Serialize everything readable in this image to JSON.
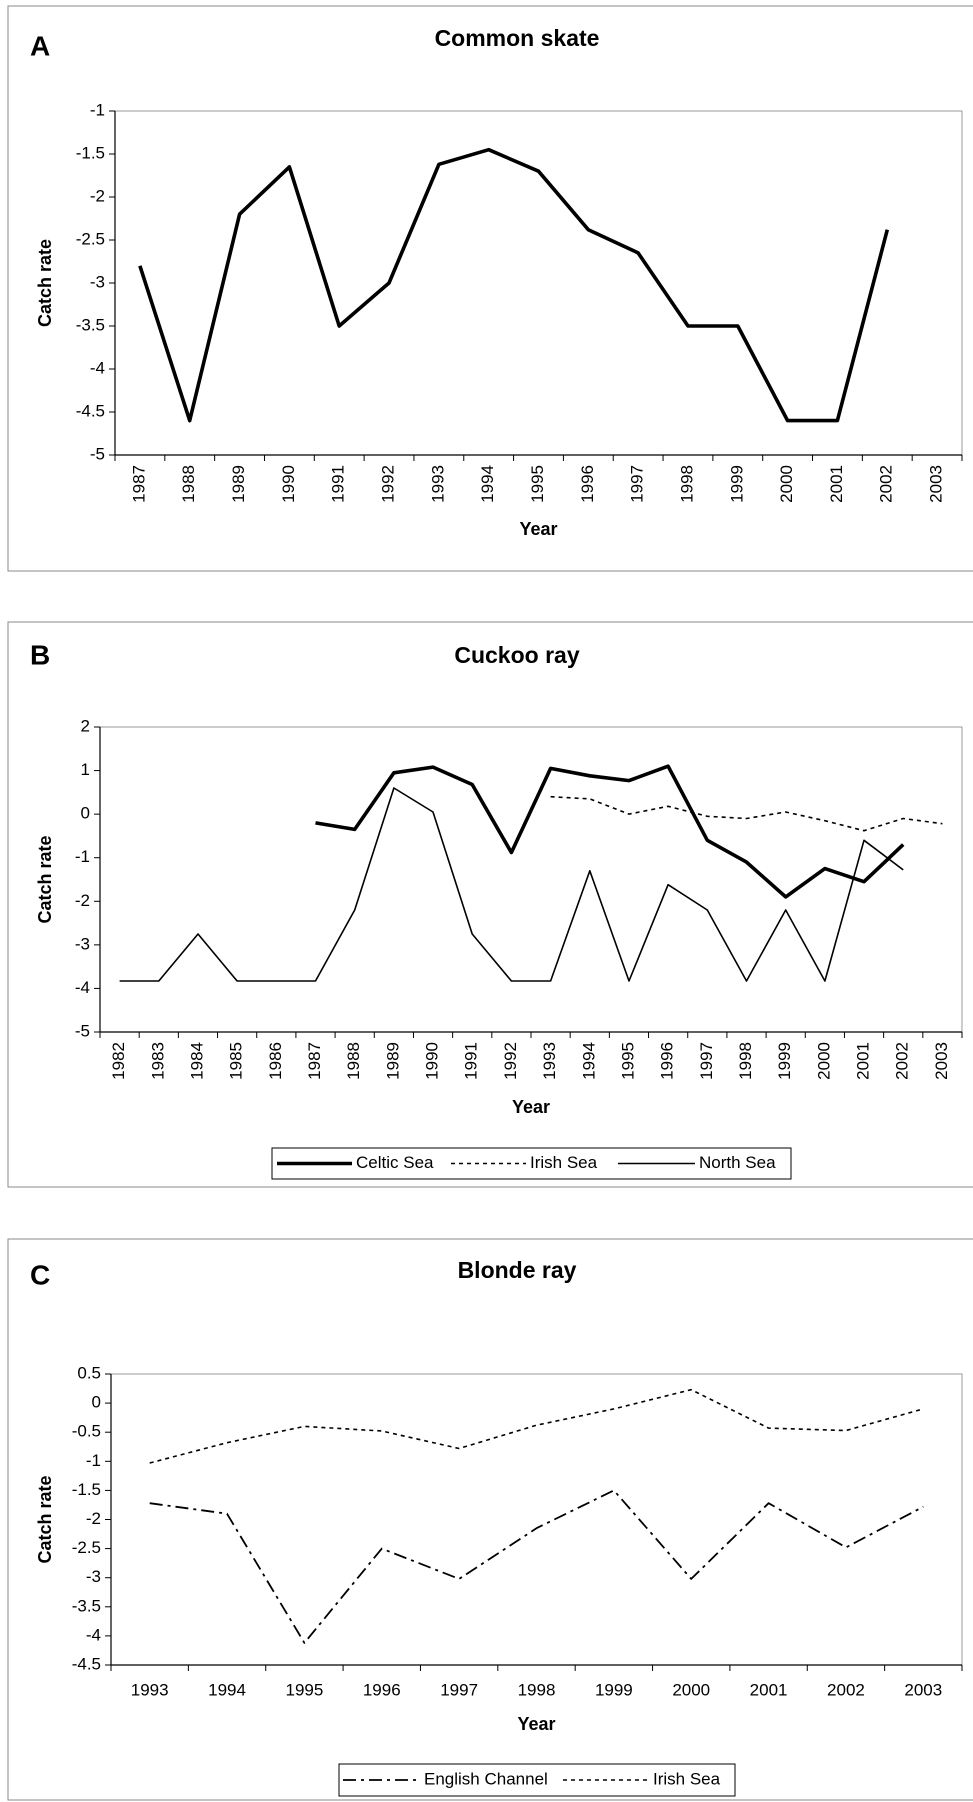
{
  "chart_data": [
    {
      "type": "line",
      "panel": "A",
      "title": "Common skate",
      "x_label": "Year",
      "y_label": "Catch rate",
      "categories": [
        "1987",
        "1988",
        "1989",
        "1990",
        "1991",
        "1992",
        "1993",
        "1994",
        "1995",
        "1996",
        "1997",
        "1998",
        "1999",
        "2000",
        "2001",
        "2002",
        "2003"
      ],
      "series": [
        {
          "color": "#000000",
          "style": "thick",
          "values": [
            -2.8,
            -4.6,
            -2.2,
            -1.65,
            -3.5,
            -3.0,
            -1.62,
            -1.45,
            -1.7,
            -2.38,
            -2.65,
            -3.5,
            -3.5,
            -4.6,
            -4.6,
            -2.38,
            null
          ]
        }
      ],
      "ylim": [
        -5,
        -1
      ],
      "yticks": [
        -5,
        -4.5,
        -4,
        -3.5,
        -3,
        -2.5,
        -2,
        -1.5,
        -1
      ],
      "grid": false
    },
    {
      "type": "line",
      "panel": "B",
      "title": "Cuckoo ray",
      "x_label": "Year",
      "y_label": "Catch rate",
      "categories": [
        "1982",
        "1983",
        "1984",
        "1985",
        "1986",
        "1987",
        "1988",
        "1989",
        "1990",
        "1991",
        "1992",
        "1993",
        "1994",
        "1995",
        "1996",
        "1997",
        "1998",
        "1999",
        "2000",
        "2001",
        "2002",
        "2003"
      ],
      "series": [
        {
          "name": "Celtic Sea",
          "color": "#000000",
          "style": "thick",
          "values": [
            null,
            null,
            null,
            null,
            null,
            -0.2,
            -0.35,
            0.95,
            1.08,
            0.68,
            -0.88,
            1.05,
            0.88,
            0.77,
            1.1,
            -0.6,
            -1.1,
            -1.9,
            -1.25,
            -1.55,
            -0.7,
            null
          ]
        },
        {
          "name": "Irish Sea",
          "color": "#000000",
          "style": "dashed",
          "values": [
            null,
            null,
            null,
            null,
            null,
            null,
            null,
            null,
            null,
            null,
            null,
            0.4,
            0.35,
            0.0,
            0.18,
            -0.05,
            -0.1,
            0.05,
            -0.15,
            -0.38,
            -0.1,
            -0.22
          ]
        },
        {
          "name": "North Sea",
          "color": "#000000",
          "style": "thin",
          "values": [
            -3.83,
            -3.83,
            -2.75,
            -3.83,
            -3.83,
            -3.83,
            -2.2,
            0.6,
            0.05,
            -2.75,
            -3.83,
            -3.83,
            -1.3,
            -3.83,
            -1.62,
            -2.2,
            -3.83,
            -2.2,
            -3.83,
            -0.6,
            -1.28,
            null
          ]
        }
      ],
      "ylim": [
        -5,
        2
      ],
      "yticks": [
        -5,
        -4,
        -3,
        -2,
        -1,
        0,
        1,
        2
      ],
      "grid": false,
      "legend": "bottom"
    },
    {
      "type": "line",
      "panel": "C",
      "title": "Blonde ray",
      "x_label": "Year",
      "y_label": "Catch rate",
      "categories": [
        "1993",
        "1994",
        "1995",
        "1996",
        "1997",
        "1998",
        "1999",
        "2000",
        "2001",
        "2002",
        "2003"
      ],
      "series": [
        {
          "name": "English Channel",
          "color": "#000000",
          "style": "dash-dot",
          "values": [
            -1.72,
            -1.9,
            -4.12,
            -2.5,
            -3.02,
            -2.15,
            -1.5,
            -3.02,
            -1.72,
            -2.48,
            -1.78
          ]
        },
        {
          "name": "Irish Sea",
          "color": "#000000",
          "style": "dashed",
          "values": [
            -1.03,
            -0.68,
            -0.4,
            -0.48,
            -0.78,
            -0.38,
            -0.1,
            0.23,
            -0.43,
            -0.47,
            -0.1
          ]
        }
      ],
      "ylim": [
        -4.5,
        0.5
      ],
      "yticks": [
        -4.5,
        -4,
        -3.5,
        -3,
        -2.5,
        -2,
        -1.5,
        -1,
        -0.5,
        0,
        0.5
      ],
      "grid": false,
      "legend": "bottom"
    }
  ]
}
